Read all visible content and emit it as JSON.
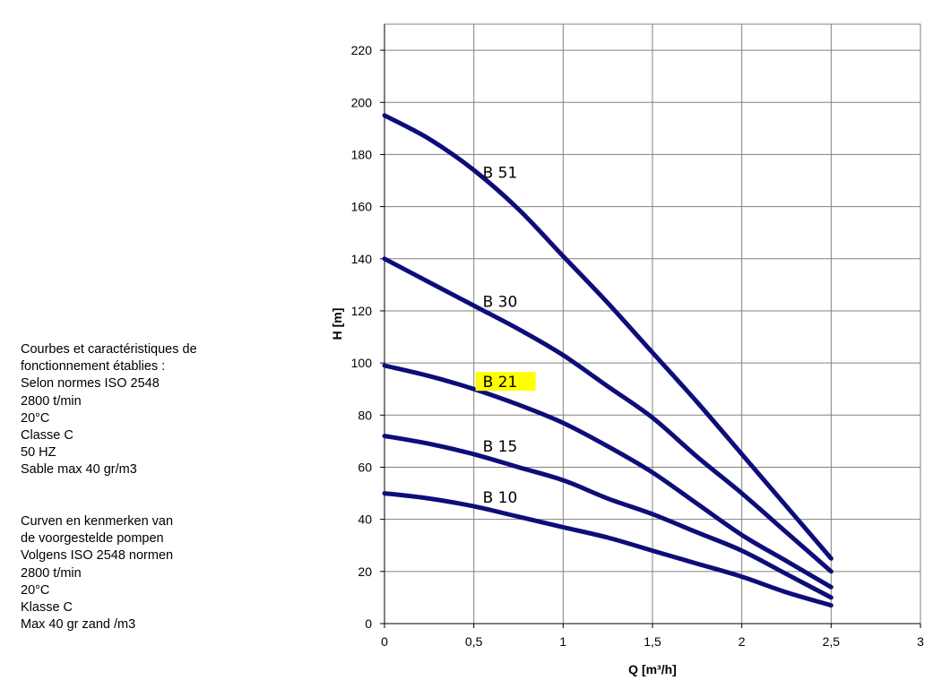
{
  "notes_fr": [
    "Courbes et caractéristiques de",
    "fonctionnement établies :",
    "Selon normes ISO 2548",
    "2800 t/min",
    "20°C",
    "Classe C",
    "50 HZ",
    "Sable max 40 gr/m3"
  ],
  "notes_nl": [
    "Curven en kenmerken van",
    "de voorgestelde pompen",
    "Volgens ISO 2548 normen",
    "2800 t/min",
    "20°C",
    "Klasse C",
    "Max 40 gr zand /m3"
  ],
  "chart_data": {
    "type": "line",
    "xlabel": "Q [m³/h]",
    "ylabel": "H [m]",
    "xlim": [
      0,
      3
    ],
    "ylim": [
      0,
      230
    ],
    "xticks": [
      {
        "value": 0,
        "label": "0"
      },
      {
        "value": 0.5,
        "label": "0,5"
      },
      {
        "value": 1,
        "label": "1"
      },
      {
        "value": 1.5,
        "label": "1,5"
      },
      {
        "value": 2,
        "label": "2"
      },
      {
        "value": 2.5,
        "label": "2,5"
      },
      {
        "value": 3,
        "label": "3"
      }
    ],
    "yticks": [
      0,
      20,
      40,
      60,
      80,
      100,
      120,
      140,
      160,
      180,
      200,
      220
    ],
    "grid": true,
    "line_color": "#0d0d7a",
    "highlight_color": "#ffff00",
    "series": [
      {
        "name": "B 51",
        "highlight": false,
        "x": [
          0,
          0.25,
          0.5,
          0.75,
          1,
          1.25,
          1.5,
          1.75,
          2,
          2.25,
          2.5
        ],
        "y": [
          195,
          186,
          174,
          159,
          141,
          123,
          104,
          85,
          65,
          45,
          25
        ]
      },
      {
        "name": "B 30",
        "highlight": false,
        "x": [
          0,
          0.25,
          0.5,
          0.75,
          1,
          1.25,
          1.5,
          1.75,
          2,
          2.25,
          2.5
        ],
        "y": [
          140,
          131,
          122,
          113,
          103,
          91,
          79,
          64,
          50,
          35,
          20
        ]
      },
      {
        "name": "B 21",
        "highlight": true,
        "x": [
          0,
          0.25,
          0.5,
          0.75,
          1,
          1.25,
          1.5,
          1.75,
          2,
          2.25,
          2.5
        ],
        "y": [
          99,
          95,
          90,
          84,
          77,
          68,
          58,
          46,
          34,
          24,
          14
        ]
      },
      {
        "name": "B 15",
        "highlight": false,
        "x": [
          0,
          0.25,
          0.5,
          0.75,
          1,
          1.25,
          1.5,
          1.75,
          2,
          2.25,
          2.5
        ],
        "y": [
          72,
          69,
          65,
          60,
          55,
          48,
          42,
          35,
          28,
          19,
          10
        ]
      },
      {
        "name": "B 10",
        "highlight": false,
        "x": [
          0,
          0.25,
          0.5,
          0.75,
          1,
          1.25,
          1.5,
          1.75,
          2,
          2.25,
          2.5
        ],
        "y": [
          50,
          48,
          45,
          41,
          37,
          33,
          28,
          23,
          18,
          12,
          7
        ]
      }
    ]
  }
}
